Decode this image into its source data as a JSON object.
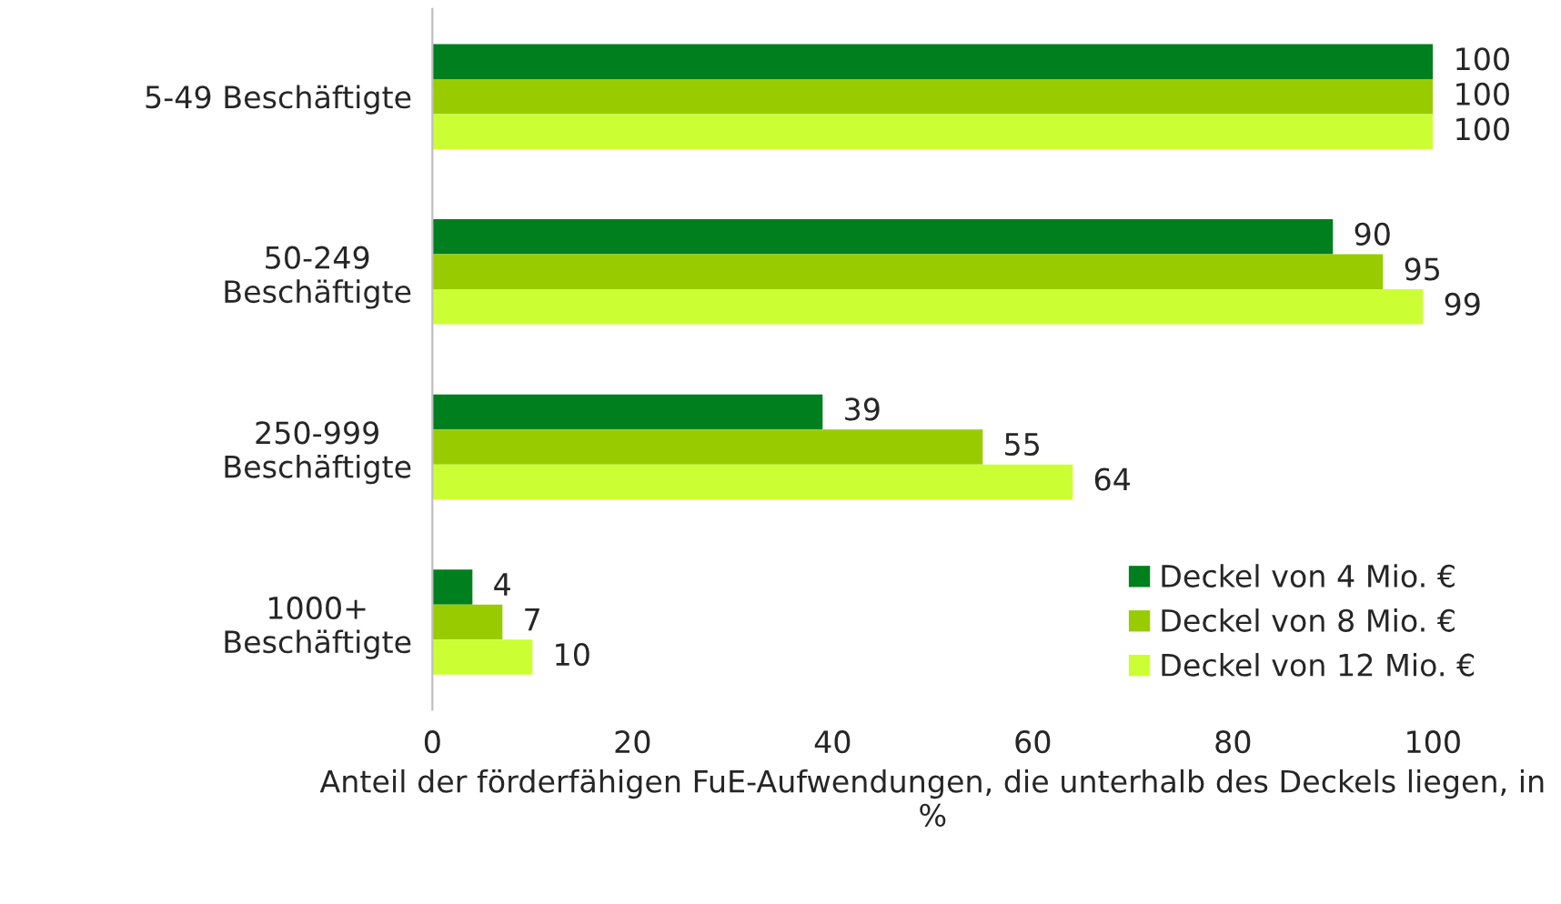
{
  "chart_data": {
    "type": "bar",
    "orientation": "horizontal",
    "categories": [
      "5-49 Beschäftigte",
      "50-249\nBeschäftigte",
      "250-999\nBeschäftigte",
      "1000+\nBeschäftigte"
    ],
    "series": [
      {
        "name": "Deckel von 4 Mio. €",
        "color": "#007f1f",
        "values": [
          100,
          90,
          39,
          4
        ]
      },
      {
        "name": "Deckel von 8 Mio. €",
        "color": "#99cc00",
        "values": [
          100,
          95,
          55,
          7
        ]
      },
      {
        "name": "Deckel von 12 Mio. €",
        "color": "#ccff33",
        "values": [
          100,
          99,
          64,
          10
        ]
      }
    ],
    "xlabel": "Anteil der förderfähigen FuE-Aufwendungen, die unterhalb des Deckels liegen, in %",
    "xlim": [
      0,
      100
    ],
    "xticks": [
      0,
      20,
      40,
      60,
      80,
      100
    ],
    "data_labels": true,
    "legend": "bottom right",
    "grid": false
  }
}
